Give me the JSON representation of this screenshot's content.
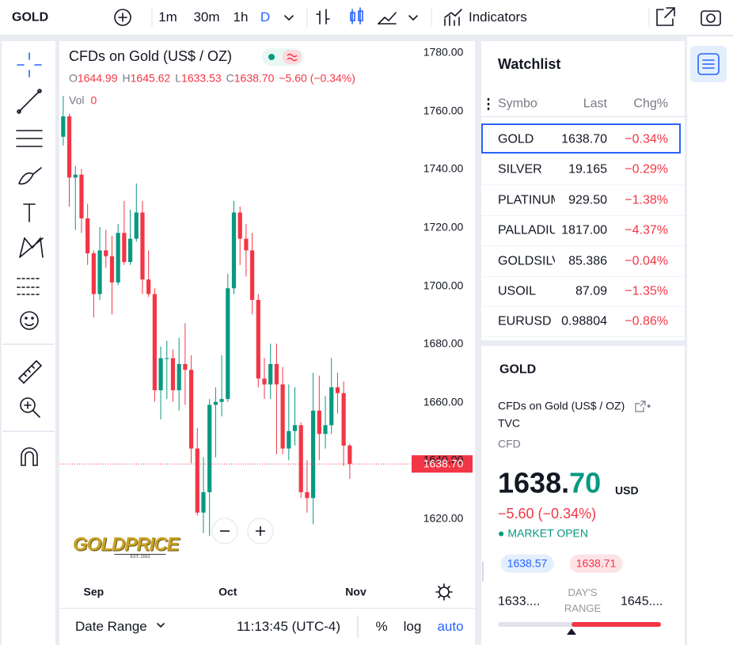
{
  "toolbar": {
    "symbol": "GOLD",
    "intervals": [
      "1m",
      "30m",
      "1h",
      "D"
    ],
    "active_interval": 3,
    "indicators": "Indicators"
  },
  "chart": {
    "type": "candlestick",
    "title": "CFDs on Gold (US$ / OZ)",
    "legend": {
      "o_label": "O",
      "o": "1644.99",
      "h_label": "H",
      "h": "1645.62",
      "l_label": "L",
      "l": "1633.53",
      "c_label": "C",
      "c": "1638.70",
      "change": "−5.60 (−0.34%)"
    },
    "volume": {
      "label": "Vol",
      "value": "0"
    },
    "up_color": "#089981",
    "down_color": "#f23645",
    "candles": [
      [
        1751,
        1765,
        1748,
        1758
      ],
      [
        1758,
        1759,
        1727,
        1737
      ],
      [
        1737,
        1741,
        1719,
        1738
      ],
      [
        1738,
        1740,
        1718,
        1723
      ],
      [
        1723,
        1728,
        1707,
        1711
      ],
      [
        1711,
        1712,
        1689,
        1697
      ],
      [
        1697,
        1720,
        1695,
        1712
      ],
      [
        1712,
        1719,
        1706,
        1710
      ],
      [
        1710,
        1717,
        1690,
        1701
      ],
      [
        1701,
        1721,
        1700,
        1718
      ],
      [
        1718,
        1729,
        1707,
        1708
      ],
      [
        1708,
        1726,
        1707,
        1716
      ],
      [
        1716,
        1735,
        1715,
        1725
      ],
      [
        1725,
        1729,
        1697,
        1702
      ],
      [
        1702,
        1712,
        1696,
        1697
      ],
      [
        1697,
        1699,
        1660,
        1664
      ],
      [
        1664,
        1679,
        1654,
        1675
      ],
      [
        1675,
        1681,
        1661,
        1675
      ],
      [
        1675,
        1678,
        1660,
        1664
      ],
      [
        1664,
        1682,
        1657,
        1673
      ],
      [
        1673,
        1687,
        1659,
        1671
      ],
      [
        1671,
        1676,
        1639,
        1644
      ],
      [
        1644,
        1651,
        1621,
        1622
      ],
      [
        1622,
        1641,
        1615,
        1629
      ],
      [
        1629,
        1661,
        1614,
        1659
      ],
      [
        1659,
        1665,
        1641,
        1660
      ],
      [
        1660,
        1676,
        1655,
        1661
      ],
      [
        1661,
        1704,
        1660,
        1699
      ],
      [
        1699,
        1729,
        1697,
        1725
      ],
      [
        1725,
        1727,
        1707,
        1716
      ],
      [
        1716,
        1721,
        1703,
        1712
      ],
      [
        1712,
        1718,
        1690,
        1695
      ],
      [
        1695,
        1697,
        1665,
        1668
      ],
      [
        1668,
        1675,
        1661,
        1666
      ],
      [
        1666,
        1680,
        1661,
        1673
      ],
      [
        1673,
        1680,
        1642,
        1666
      ],
      [
        1666,
        1672,
        1642,
        1644
      ],
      [
        1644,
        1666,
        1640,
        1650
      ],
      [
        1650,
        1665,
        1645,
        1652
      ],
      [
        1652,
        1653,
        1627,
        1629
      ],
      [
        1629,
        1640,
        1622,
        1627
      ],
      [
        1627,
        1670,
        1618,
        1657
      ],
      [
        1657,
        1669,
        1640,
        1649
      ],
      [
        1649,
        1662,
        1644,
        1652
      ],
      [
        1652,
        1675,
        1649,
        1665
      ],
      [
        1665,
        1670,
        1656,
        1663
      ],
      [
        1663,
        1667,
        1638,
        1645
      ],
      [
        1644.99,
        1645.62,
        1633.53,
        1638.7
      ]
    ],
    "xlim": [
      -0.5,
      56.5
    ],
    "xticks": [
      {
        "value": 5,
        "label": "Sep"
      },
      {
        "value": 27,
        "label": "Oct"
      },
      {
        "value": 48,
        "label": "Nov"
      }
    ],
    "ylim": [
      1601,
      1783
    ],
    "yticks": [
      {
        "value": 1620,
        "label": "1620.00"
      },
      {
        "value": 1640,
        "label": "1640.00"
      },
      {
        "value": 1660,
        "label": "1660.00"
      },
      {
        "value": 1680,
        "label": "1680.00"
      },
      {
        "value": 1700,
        "label": "1700.00"
      },
      {
        "value": 1720,
        "label": "1720.00"
      },
      {
        "value": 1740,
        "label": "1740.00"
      },
      {
        "value": 1760,
        "label": "1760.00"
      },
      {
        "value": 1780,
        "label": "1780.00"
      }
    ],
    "last_price": {
      "value": 1638.7,
      "label": "1638.70"
    },
    "logo": {
      "name": "GOLDPRICE",
      "est": "EST. 2002"
    },
    "bottom_bar": {
      "date_range": "Date Range",
      "time": "11:13:45 (UTC-4)",
      "percent": "%",
      "log": "log",
      "auto": "auto"
    }
  },
  "watchlist": {
    "title": "Watchlist",
    "columns": [
      "Symbol",
      "Last",
      "Chg%"
    ],
    "selected": 0,
    "rows": [
      [
        "GOLD",
        "1638.70",
        "−0.34%"
      ],
      [
        "SILVER",
        "19.165",
        "−0.29%"
      ],
      [
        "PLATINUM",
        "929.50",
        "−1.38%"
      ],
      [
        "PALLADIUM",
        "1817.00",
        "−4.37%"
      ],
      [
        "GOLDSILVER",
        "85.386",
        "−0.04%"
      ],
      [
        "USOIL",
        "87.09",
        "−1.35%"
      ],
      [
        "EURUSD",
        "0.98804",
        "−0.86%"
      ]
    ]
  },
  "detail": {
    "symbol": "GOLD",
    "description": "CFDs on Gold (US$ / OZ)",
    "separator": "•",
    "exchange": "TVC",
    "kind": "CFD",
    "price_main": "1638.",
    "price_frac": "70",
    "currency": "USD",
    "change": "−5.60 (−0.34%)",
    "status": "MARKET OPEN",
    "bid": "1638.57",
    "ask": "1638.71",
    "day_low": "1633....",
    "range_label": [
      "DAY'S",
      "RANGE"
    ],
    "day_high": "1645...."
  }
}
